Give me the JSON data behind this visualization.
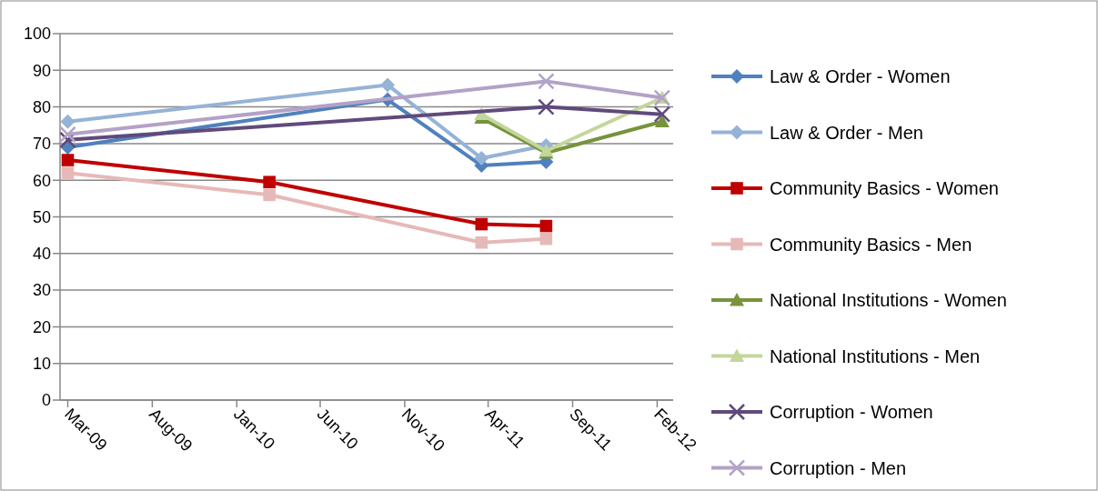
{
  "chart_data": {
    "type": "line",
    "ylim": [
      0,
      100
    ],
    "yticks": [
      0,
      10,
      20,
      30,
      40,
      50,
      60,
      70,
      80,
      90,
      100
    ],
    "xlim": [
      "2009-02-15",
      "2012-03-01"
    ],
    "xticks": [
      {
        "value": "2009-03",
        "label": "Mar-09"
      },
      {
        "value": "2009-08",
        "label": "Aug-09"
      },
      {
        "value": "2010-01",
        "label": "Jan-10"
      },
      {
        "value": "2010-06",
        "label": "Jun-10"
      },
      {
        "value": "2010-11",
        "label": "Nov-10"
      },
      {
        "value": "2011-04",
        "label": "Apr-11"
      },
      {
        "value": "2011-09",
        "label": "Sep-11"
      },
      {
        "value": "2012-02",
        "label": "Feb-12"
      }
    ],
    "grid": "y",
    "legend": "right",
    "series": [
      {
        "name": "Law & Order - Women",
        "color": "#4f81bd",
        "marker": "diamond",
        "x": [
          "2009-03",
          "2010-10",
          "2011-03-20",
          "2011-07-15"
        ],
        "values": [
          69,
          82,
          64,
          65
        ]
      },
      {
        "name": "Law & Order - Men",
        "color": "#95b3d7",
        "marker": "diamond",
        "x": [
          "2009-03",
          "2010-10",
          "2011-03-20",
          "2011-07-15"
        ],
        "values": [
          76,
          86,
          66,
          69.5
        ]
      },
      {
        "name": "Community Basics - Women",
        "color": "#c00000",
        "marker": "square",
        "x": [
          "2009-03",
          "2010-03",
          "2011-03-20",
          "2011-07-15"
        ],
        "values": [
          65.5,
          59.5,
          48,
          47.5
        ]
      },
      {
        "name": "Community Basics - Men",
        "color": "#e6b9b8",
        "marker": "square",
        "x": [
          "2009-03",
          "2010-03",
          "2011-03-20",
          "2011-07-15"
        ],
        "values": [
          62,
          56,
          43,
          44
        ]
      },
      {
        "name": "National Institutions - Women",
        "color": "#77933c",
        "marker": "triangle",
        "x": [
          "2011-03-20",
          "2011-07-15",
          "2012-02-10"
        ],
        "values": [
          77,
          67.5,
          76
        ]
      },
      {
        "name": "National Institutions - Men",
        "color": "#c3d69b",
        "marker": "triangle",
        "x": [
          "2011-03-20",
          "2011-07-15",
          "2012-02-10"
        ],
        "values": [
          78,
          68,
          82.5
        ]
      },
      {
        "name": "Corruption - Women",
        "color": "#604a7b",
        "marker": "cross",
        "x": [
          "2009-03",
          "2011-07-15",
          "2012-02-10"
        ],
        "values": [
          71,
          80,
          78
        ]
      },
      {
        "name": "Corruption - Men",
        "color": "#b3a2c7",
        "marker": "cross",
        "x": [
          "2009-03",
          "2011-07-15",
          "2012-02-10"
        ],
        "values": [
          72.5,
          87,
          82.5
        ]
      }
    ]
  }
}
